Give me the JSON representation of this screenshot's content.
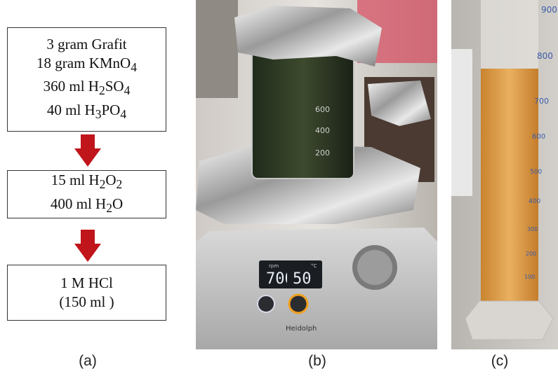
{
  "panel_a": {
    "step1": {
      "line1": {
        "text": "3 gram Grafit"
      },
      "line2": {
        "text": "18 gram KMnO",
        "sub": "4"
      },
      "line3": {
        "text": "360 ml H",
        "sub1": "2",
        "mid": "SO",
        "sub2": "4"
      },
      "line4": {
        "text": "40 ml H",
        "sub1": "3",
        "mid": "PO",
        "sub2": "4"
      }
    },
    "step2": {
      "line1": {
        "text": "15 ml H",
        "sub1": "2",
        "mid": "O",
        "sub2": "2"
      },
      "line2": {
        "text": "400 ml H",
        "sub": "2",
        "tail": "O"
      }
    },
    "step3": {
      "line1": "1 M HCl",
      "line2": "(150 ml )"
    },
    "arrow_color": "#c0151a"
  },
  "captions": {
    "a": "(a)",
    "b": "(b)",
    "c": "(c)"
  },
  "panel_b": {
    "display": {
      "left_value": "700",
      "left_unit": "rpm",
      "right_value": "50",
      "right_unit": "°C"
    },
    "brand": "Heidolph",
    "beaker_marks": [
      "600",
      "400",
      "200"
    ]
  },
  "panel_c": {
    "cylinder_marks": [
      "900",
      "800",
      "700",
      "600",
      "500",
      "400",
      "300",
      "200",
      "100"
    ],
    "liquid_color": "#e3a24a"
  }
}
